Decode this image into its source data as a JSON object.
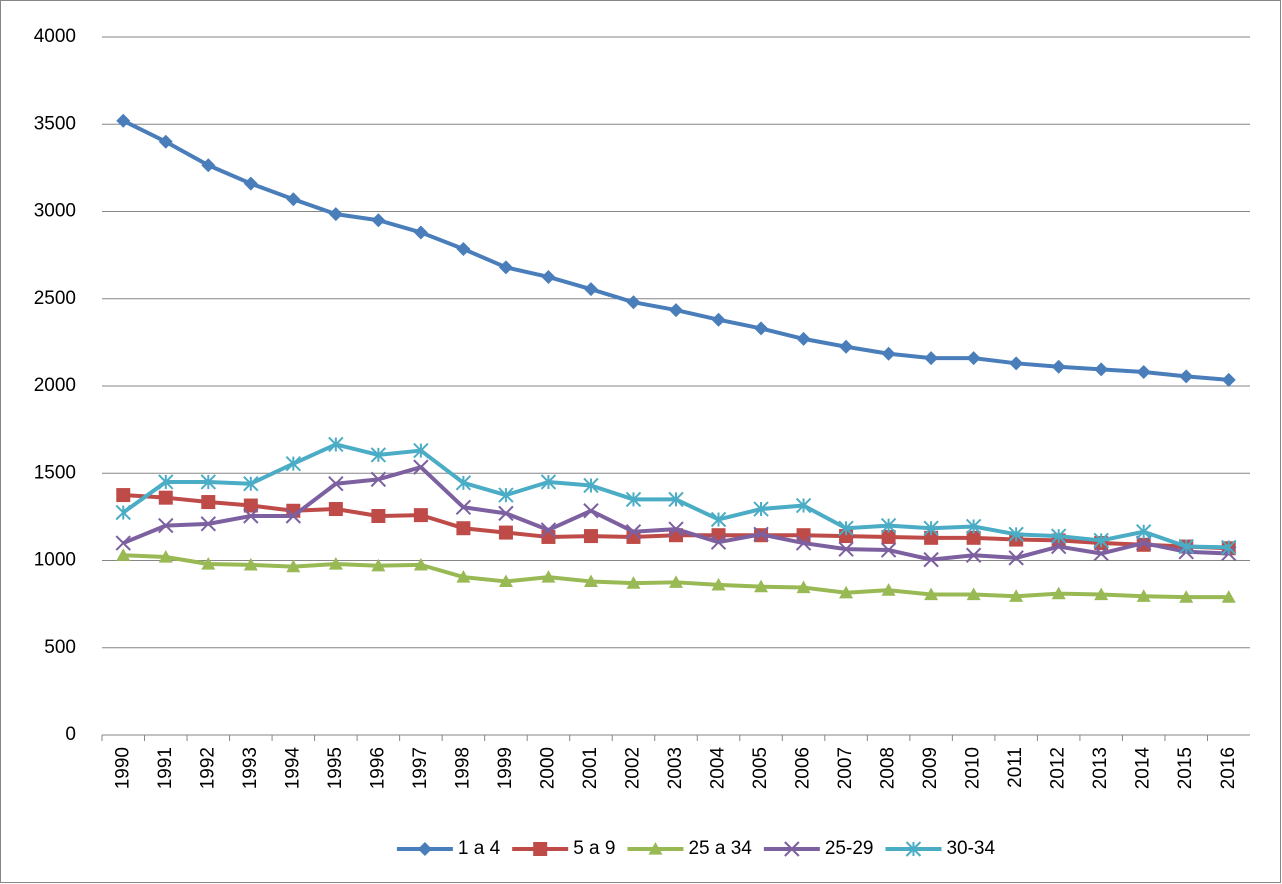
{
  "chart_data": {
    "type": "line",
    "categories": [
      "1990",
      "1991",
      "1992",
      "1993",
      "1994",
      "1995",
      "1996",
      "1997",
      "1998",
      "1999",
      "2000",
      "2001",
      "2002",
      "2003",
      "2004",
      "2005",
      "2006",
      "2007",
      "2008",
      "2009",
      "2010",
      "2011",
      "2012",
      "2013",
      "2014",
      "2015",
      "2016"
    ],
    "series": [
      {
        "name": "1 a 4",
        "color": "#4a7ebb",
        "marker": "diamond",
        "values": [
          3520,
          3400,
          3265,
          3160,
          3070,
          2985,
          2950,
          2880,
          2785,
          2680,
          2625,
          2555,
          2480,
          2435,
          2380,
          2330,
          2270,
          2225,
          2185,
          2160,
          2160,
          2130,
          2110,
          2095,
          2080,
          2055,
          2035
        ]
      },
      {
        "name": "5 a 9",
        "color": "#be4b48",
        "marker": "square",
        "values": [
          1375,
          1360,
          1335,
          1315,
          1285,
          1295,
          1255,
          1260,
          1185,
          1160,
          1135,
          1140,
          1135,
          1145,
          1145,
          1145,
          1145,
          1140,
          1135,
          1130,
          1130,
          1120,
          1115,
          1100,
          1090,
          1080,
          1070
        ]
      },
      {
        "name": "25 a 34",
        "color": "#98b954",
        "marker": "triangle",
        "values": [
          1030,
          1020,
          980,
          975,
          965,
          980,
          970,
          975,
          905,
          880,
          905,
          880,
          870,
          875,
          860,
          850,
          845,
          815,
          830,
          805,
          805,
          795,
          810,
          805,
          795,
          790,
          790
        ]
      },
      {
        "name": "25-29",
        "color": "#7d60a0",
        "marker": "x",
        "values": [
          1100,
          1200,
          1210,
          1255,
          1255,
          1440,
          1465,
          1535,
          1305,
          1270,
          1175,
          1285,
          1165,
          1180,
          1105,
          1150,
          1100,
          1065,
          1060,
          1005,
          1030,
          1015,
          1080,
          1040,
          1100,
          1050,
          1040
        ]
      },
      {
        "name": "30-34",
        "color": "#4bacc6",
        "marker": "star",
        "values": [
          1275,
          1450,
          1450,
          1440,
          1555,
          1665,
          1605,
          1630,
          1445,
          1375,
          1450,
          1430,
          1350,
          1350,
          1235,
          1295,
          1315,
          1185,
          1200,
          1185,
          1195,
          1150,
          1140,
          1115,
          1165,
          1080,
          1075
        ]
      }
    ],
    "ylim": [
      0,
      4000
    ],
    "yticks": [
      0,
      500,
      1000,
      1500,
      2000,
      2500,
      3000,
      3500,
      4000
    ],
    "grid": true,
    "legend": "bottom"
  }
}
